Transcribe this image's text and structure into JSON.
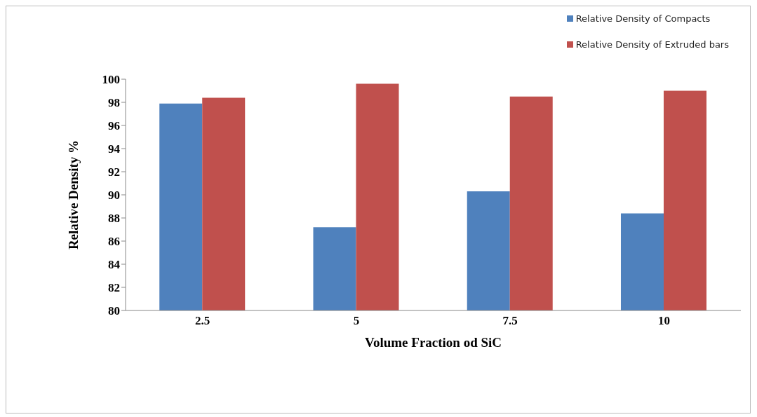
{
  "chart_data": {
    "type": "bar",
    "xlabel": "Volume Fraction od SiC",
    "ylabel": "Relative Density %",
    "categories": [
      "2.5",
      "5",
      "7.5",
      "10"
    ],
    "series": [
      {
        "name": "Relative Density of Compacts",
        "color": "#4f81bd",
        "values": [
          97.9,
          87.2,
          90.3,
          88.4
        ]
      },
      {
        "name": "Relative Density of Extruded bars",
        "color": "#c0504d",
        "values": [
          98.4,
          99.6,
          98.5,
          99.0
        ]
      }
    ],
    "ylim": [
      80,
      100
    ],
    "yticks": [
      80,
      82,
      84,
      86,
      88,
      90,
      92,
      94,
      96,
      98,
      100
    ],
    "grid": false,
    "legend": "top right"
  }
}
